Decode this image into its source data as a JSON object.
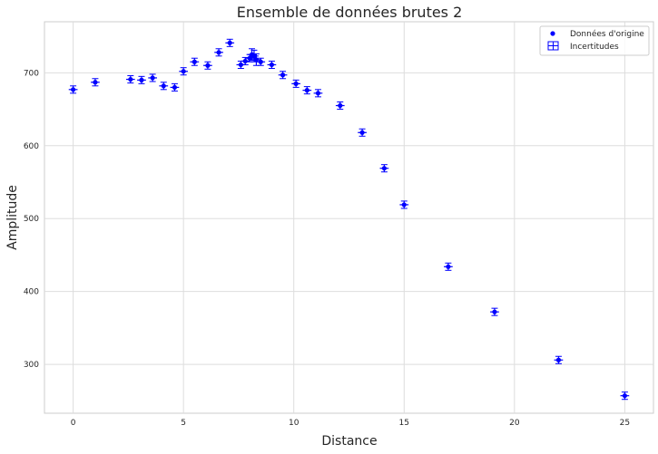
{
  "chart_data": {
    "type": "scatter",
    "title": "Ensemble de données brutes 2",
    "xlabel": "Distance",
    "ylabel": "Amplitude",
    "xlim": [
      -1.3,
      26.3
    ],
    "ylim": [
      233,
      770
    ],
    "xticks": [
      0,
      5,
      10,
      15,
      20,
      25
    ],
    "yticks": [
      300,
      400,
      500,
      600,
      700
    ],
    "grid": true,
    "legend_position": "top-right",
    "marker_color": "#0000ff",
    "series": [
      {
        "name": "Données d'origine",
        "x": [
          0,
          1,
          2.6,
          3.1,
          3.6,
          4.1,
          4.6,
          5.0,
          5.5,
          6.1,
          6.6,
          7.1,
          7.6,
          7.8,
          8.0,
          8.1,
          8.2,
          8.3,
          8.5,
          9.0,
          9.5,
          10.1,
          10.6,
          11.1,
          12.1,
          13.1,
          14.1,
          15.0,
          17.0,
          19.1,
          22.0,
          25.0
        ],
        "y": [
          677,
          687,
          691,
          690,
          693,
          682,
          680,
          702,
          715,
          710,
          728,
          741,
          711,
          716,
          720,
          725,
          723,
          718,
          715,
          711,
          697,
          685,
          676,
          672,
          655,
          618,
          569,
          519,
          434,
          372,
          306,
          257
        ],
        "x_err": [
          0.2,
          0.2,
          0.2,
          0.2,
          0.2,
          0.2,
          0.2,
          0.2,
          0.2,
          0.2,
          0.2,
          0.2,
          0.2,
          0.2,
          0.2,
          0.2,
          0.2,
          0.2,
          0.2,
          0.2,
          0.2,
          0.2,
          0.2,
          0.2,
          0.2,
          0.2,
          0.2,
          0.2,
          0.2,
          0.2,
          0.2,
          0.2
        ],
        "y_err": [
          5,
          5,
          5,
          5,
          5,
          5,
          5,
          5,
          5,
          5,
          5,
          5,
          5,
          5,
          5,
          8,
          8,
          8,
          5,
          5,
          5,
          5,
          5,
          5,
          5,
          5,
          5,
          5,
          5,
          5,
          5,
          5
        ]
      }
    ],
    "legend": [
      {
        "label": "Données d'origine",
        "marker": "dot"
      },
      {
        "label": "Incertitudes",
        "marker": "errorbar-box"
      }
    ]
  }
}
